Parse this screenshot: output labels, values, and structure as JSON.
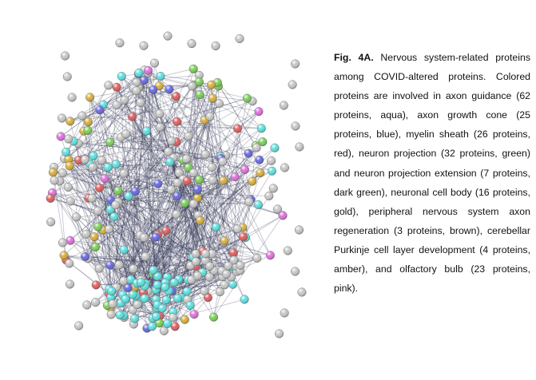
{
  "figure": {
    "caption_label": "Fig. 4A.",
    "caption_text": "Nervous system-related proteins among COVID-altered proteins. Colored proteins are involved in axon guidance (62 proteins, aqua), axon growth cone (25 proteins, blue), myelin sheath (26 proteins, red), neuron projection (32 proteins, green) and neuron projection extension (7 proteins, dark green), neuronal cell body (16 proteins, gold), peripheral nervous system axon regeneration (3 proteins, brown), cerebellar Purkinje cell layer development (4 proteins, amber), and olfactory bulb (23 proteins, pink)."
  }
}
